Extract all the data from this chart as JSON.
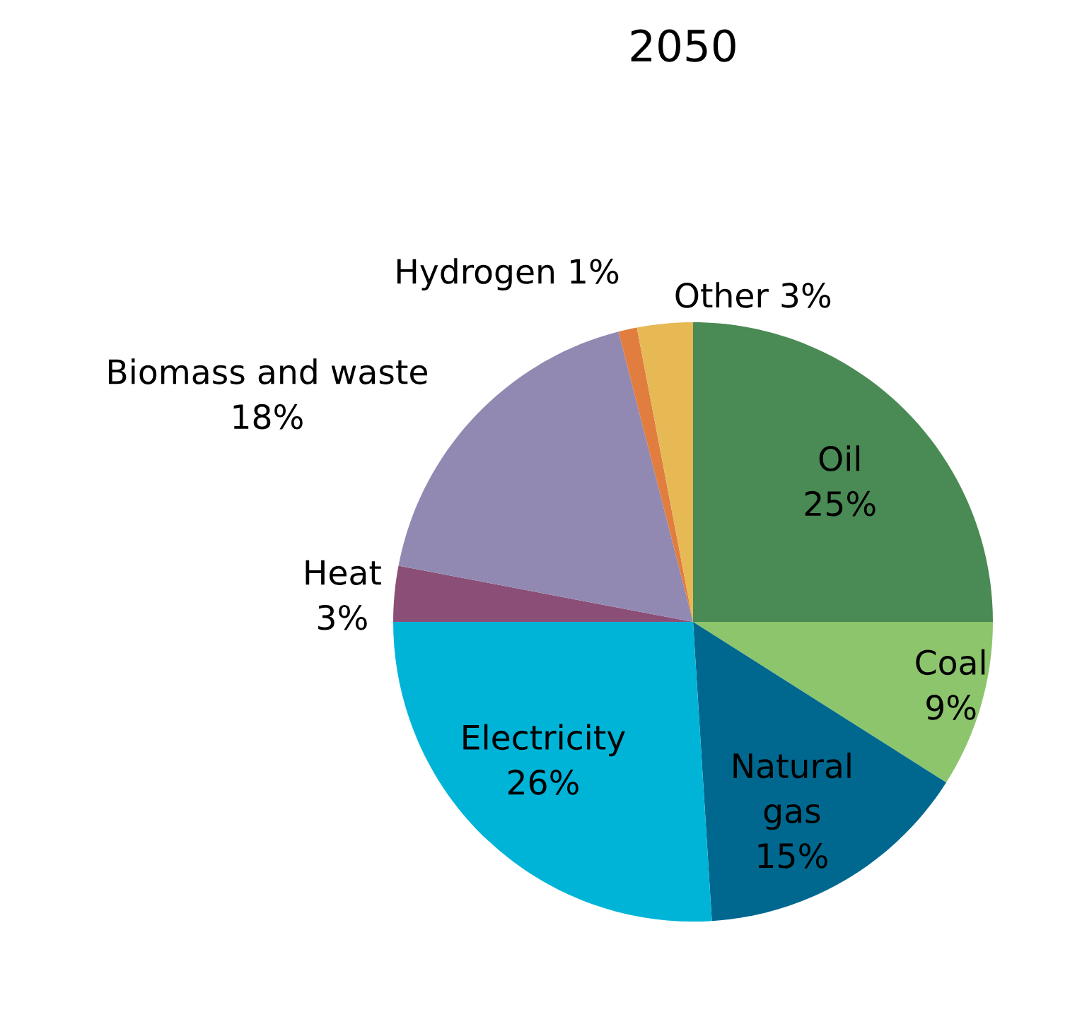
{
  "chart_data": {
    "type": "pie",
    "title": "2050",
    "categories": [
      "Oil",
      "Coal",
      "Natural gas",
      "Electricity",
      "Heat",
      "Biomass and waste",
      "Hydrogen",
      "Other"
    ],
    "values": [
      25,
      9,
      15,
      26,
      3,
      18,
      1,
      3
    ],
    "value_labels": [
      "25%",
      "9%",
      "15%",
      "26%",
      "3%",
      "18%",
      "1%",
      "3%"
    ],
    "colors": [
      "#4a8a54",
      "#8dc56c",
      "#00688f",
      "#00b4d8",
      "#8b4f77",
      "#9189b2",
      "#e07d3f",
      "#e6b955"
    ]
  }
}
